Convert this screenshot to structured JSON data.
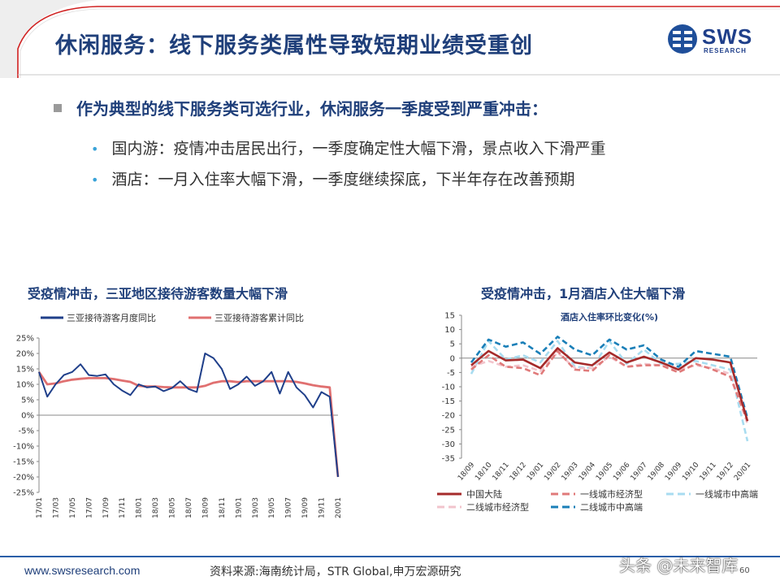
{
  "header": {
    "title": "休闲服务：线下服务类属性导致短期业绩受重创"
  },
  "logo": {
    "text": "SWS",
    "sub": "RESEARCH"
  },
  "content": {
    "main_point": "作为典型的线下服务类可选行业，休闲服务一季度受到严重冲击：",
    "sub_points": [
      "国内游：疫情冲击居民出行，一季度确定性大幅下滑，景点收入下滑严重",
      "酒店：一月入住率大幅下滑，一季度继续探底，下半年存在改善预期"
    ]
  },
  "chart_data": [
    {
      "type": "line",
      "title": "受疫情冲击，三亚地区接待游客数量大幅下滑",
      "x": [
        "17/01",
        "17/02",
        "17/03",
        "17/04",
        "17/05",
        "17/06",
        "17/07",
        "17/08",
        "17/09",
        "17/10",
        "17/11",
        "17/12",
        "18/01",
        "18/02",
        "18/03",
        "18/04",
        "18/05",
        "18/06",
        "18/07",
        "18/08",
        "18/09",
        "18/10",
        "18/11",
        "18/12",
        "19/01",
        "19/02",
        "19/03",
        "19/04",
        "19/05",
        "19/06",
        "19/07",
        "19/08",
        "19/09",
        "19/10",
        "19/11",
        "19/12",
        "20/01"
      ],
      "x_tick_labels": [
        "17/01",
        "17/03",
        "17/05",
        "17/07",
        "17/09",
        "17/11",
        "18/01",
        "18/03",
        "18/05",
        "18/07",
        "18/09",
        "18/11",
        "19/01",
        "19/03",
        "19/05",
        "19/07",
        "19/09",
        "19/11",
        "20/01"
      ],
      "ylim": [
        -25,
        25
      ],
      "y_ticks": [
        "25%",
        "20%",
        "15%",
        "10%",
        "5%",
        "0%",
        "-5%",
        "-10%",
        "-15%",
        "-20%",
        "-25%"
      ],
      "legend_position": "top",
      "series": [
        {
          "name": "三亚接待游客月度同比",
          "color": "#1f3f8a",
          "values": [
            14,
            6,
            10,
            13,
            14,
            16.5,
            13,
            12.7,
            13.2,
            10,
            8,
            6.5,
            10,
            9,
            9.3,
            7.8,
            8.8,
            11,
            8.5,
            7.5,
            20,
            18.5,
            15,
            8.5,
            10,
            12.5,
            9.5,
            11,
            14,
            7,
            14,
            9,
            6.5,
            2.5,
            7.5,
            6,
            -20
          ]
        },
        {
          "name": "三亚接待游客累计同比",
          "color": "#e07070",
          "values": [
            14,
            10,
            10.3,
            11,
            11.5,
            11.8,
            12,
            12,
            12,
            11.7,
            11.2,
            10.8,
            9.5,
            9.3,
            9.3,
            9.1,
            9,
            9,
            9,
            9,
            9.5,
            10.5,
            11,
            11,
            10.7,
            11,
            11,
            11,
            11,
            11,
            11,
            10.8,
            10.3,
            9.7,
            9.3,
            9,
            -20
          ]
        }
      ]
    },
    {
      "type": "line",
      "title": "受疫情冲击，1月酒店入住大幅下滑",
      "subtitle": "酒店入住率环比变化(%)",
      "x": [
        "18/09",
        "18/10",
        "18/11",
        "18/12",
        "19/01",
        "19/02",
        "19/03",
        "19/04",
        "19/05",
        "19/06",
        "19/07",
        "19/08",
        "19/09",
        "19/10",
        "19/11",
        "19/12",
        "20/01"
      ],
      "ylim": [
        -35,
        15
      ],
      "y_ticks": [
        "15",
        "10",
        "5",
        "0",
        "-5",
        "-10",
        "-15",
        "-20",
        "-25",
        "-30",
        "-35"
      ],
      "legend_position": "bottom",
      "series": [
        {
          "name": "中国大陆",
          "color": "#a52a2a",
          "dash": "solid",
          "values": [
            -2.5,
            2.5,
            -0.8,
            -0.5,
            -3.5,
            3.5,
            -1.5,
            -2.5,
            2,
            -1.5,
            0.5,
            -1.5,
            -4,
            0,
            -0.5,
            -1.5,
            -22
          ]
        },
        {
          "name": "一线城市经济型",
          "color": "#e07a7a",
          "dash": "dash",
          "values": [
            -4,
            1,
            -3,
            -3.5,
            -6,
            2.5,
            -4,
            -4.5,
            1,
            -3,
            -2.5,
            -2.5,
            -5,
            -2,
            -4,
            -6.5,
            -22
          ]
        },
        {
          "name": "一线城市中高端",
          "color": "#a8dcf0",
          "dash": "dash",
          "values": [
            -5.5,
            6,
            -0.5,
            1,
            -1.5,
            6,
            -3,
            -3.5,
            6,
            -2,
            3,
            -2,
            -2,
            -1,
            -2.5,
            -4,
            -29
          ]
        },
        {
          "name": "二线城市经济型",
          "color": "#f2c4cc",
          "dash": "dash",
          "values": [
            -3,
            -1,
            -3,
            -2.5,
            -4.5,
            2,
            -3.5,
            -3.5,
            0.5,
            -3,
            -2,
            -2.5,
            -4,
            -2.5,
            -3.5,
            -5.5,
            -23
          ]
        },
        {
          "name": "二线城市中高端",
          "color": "#1a7fb8",
          "dash": "dash",
          "values": [
            -1.5,
            6.5,
            4,
            5.5,
            1.5,
            7.5,
            3,
            1,
            6.5,
            3,
            4.5,
            -0.5,
            -3,
            2.5,
            1.5,
            0.5,
            -21
          ]
        }
      ]
    }
  ],
  "footer": {
    "url": "www.swsresearch.com",
    "source": "资料来源:海南统计局，STR Global,申万宏源研究",
    "page": "60",
    "watermark": "头条 @未来智库"
  }
}
